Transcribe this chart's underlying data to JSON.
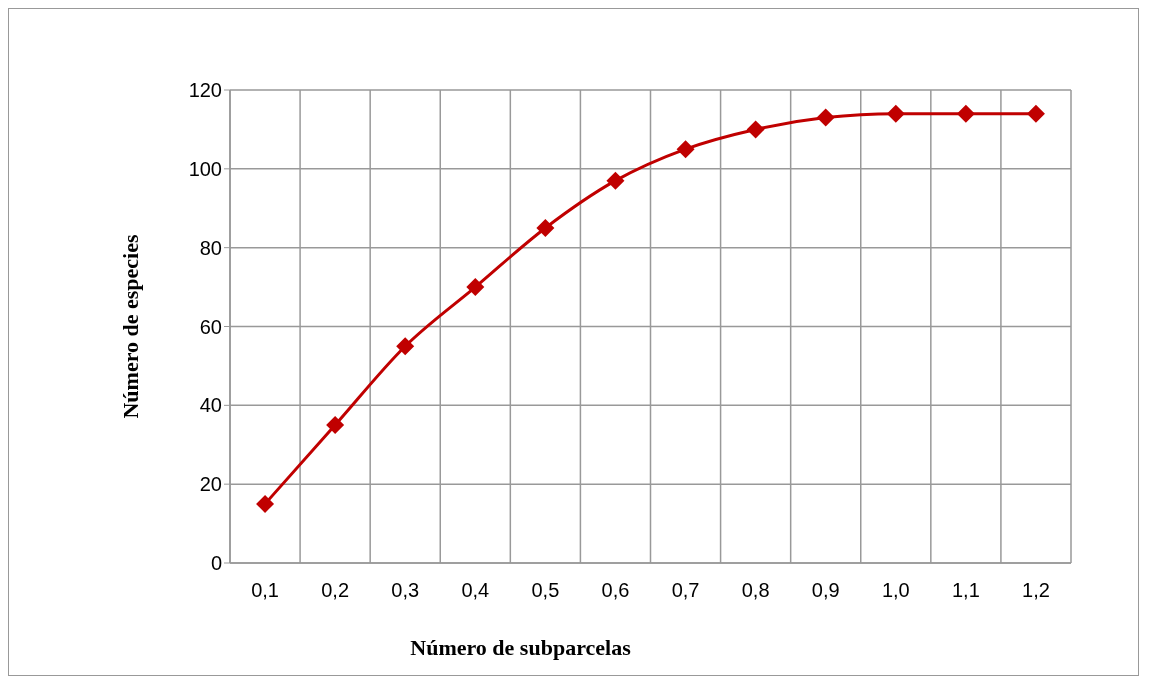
{
  "chart_data": {
    "type": "line",
    "xlabel": "Número de subparcelas",
    "ylabel": "Número de especies",
    "categories": [
      "0,1",
      "0,2",
      "0,3",
      "0,4",
      "0,5",
      "0,6",
      "0,7",
      "0,8",
      "0,9",
      "1,0",
      "1,1",
      "1,2"
    ],
    "series": [
      {
        "color": "#c00000",
        "values": [
          15,
          35,
          55,
          70,
          85,
          97,
          105,
          110,
          113,
          114,
          114,
          114
        ]
      }
    ],
    "ylim": [
      0,
      120
    ],
    "yticks": [
      0,
      20,
      40,
      60,
      80,
      100,
      120
    ],
    "grid": true,
    "marker": "diamond",
    "line_style": "solid"
  }
}
